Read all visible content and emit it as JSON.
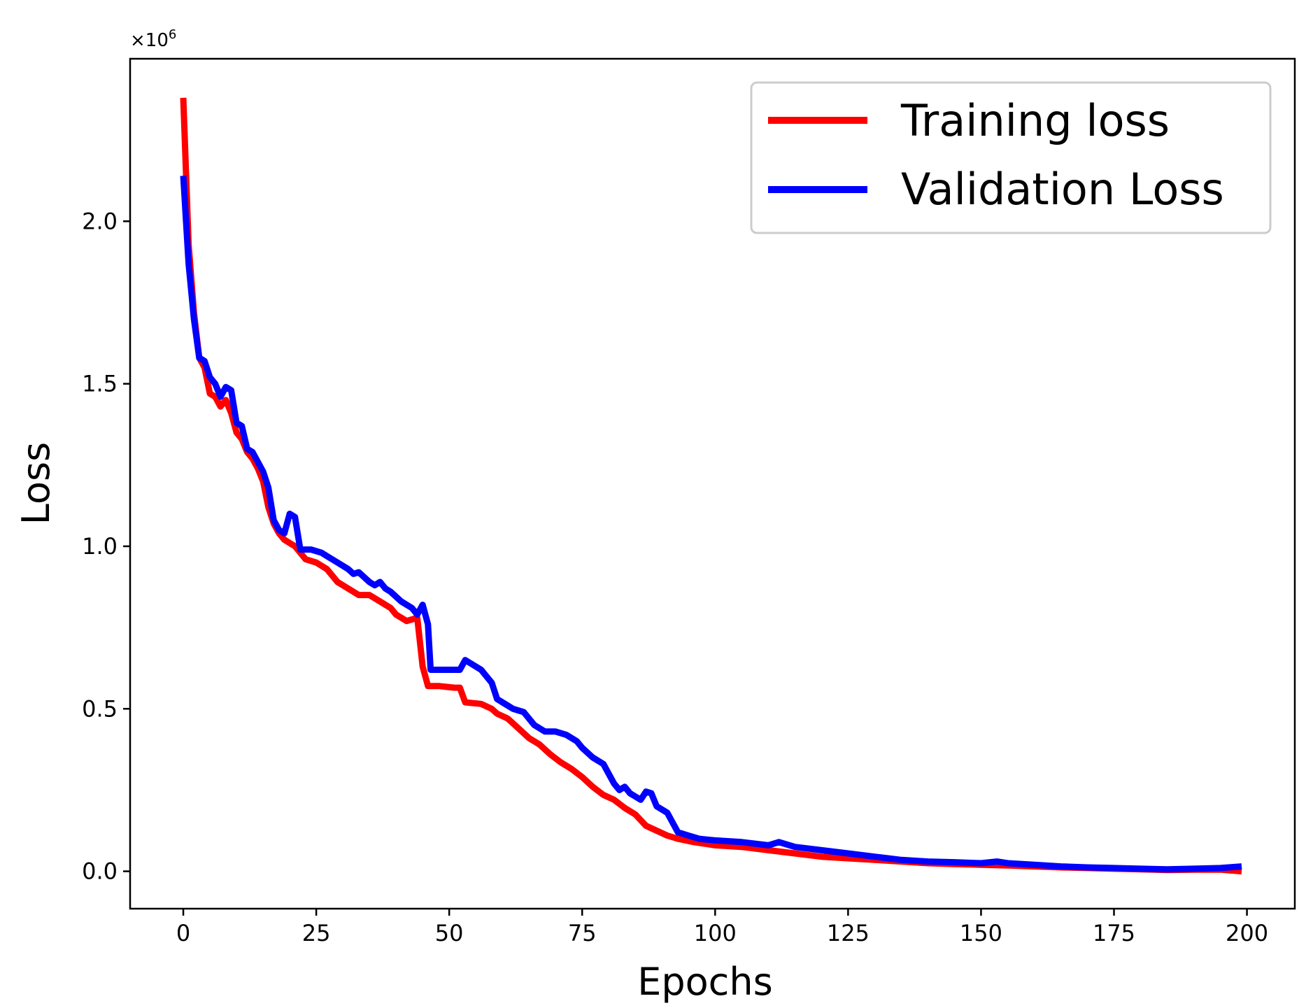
{
  "chart_data": {
    "type": "line",
    "title": "",
    "xlabel": "Epochs",
    "ylabel": "Loss",
    "y_multiplier_base": "×10",
    "y_multiplier_exp": "6",
    "xlim": [
      -10,
      209
    ],
    "ylim": [
      -0.115,
      2.5
    ],
    "xticks": [
      0,
      25,
      50,
      75,
      100,
      125,
      150,
      175,
      200
    ],
    "xtick_labels": [
      "0",
      "25",
      "50",
      "75",
      "100",
      "125",
      "150",
      "175",
      "200"
    ],
    "yticks": [
      0.0,
      0.5,
      1.0,
      1.5,
      2.0
    ],
    "ytick_labels": [
      "0.0",
      "0.5",
      "1.0",
      "1.5",
      "2.0"
    ],
    "grid": false,
    "legend": {
      "position": "top-right"
    },
    "series": [
      {
        "name": "Training loss",
        "color": "#ff0000",
        "points": [
          [
            0,
            2.38
          ],
          [
            1,
            1.93
          ],
          [
            2,
            1.72
          ],
          [
            3,
            1.58
          ],
          [
            4,
            1.55
          ],
          [
            5,
            1.47
          ],
          [
            6,
            1.46
          ],
          [
            7,
            1.43
          ],
          [
            8,
            1.45
          ],
          [
            9,
            1.41
          ],
          [
            10,
            1.35
          ],
          [
            11,
            1.33
          ],
          [
            12,
            1.29
          ],
          [
            13,
            1.27
          ],
          [
            14,
            1.24
          ],
          [
            15,
            1.2
          ],
          [
            16,
            1.12
          ],
          [
            17,
            1.07
          ],
          [
            18,
            1.04
          ],
          [
            19,
            1.02
          ],
          [
            20,
            1.01
          ],
          [
            21,
            1.0
          ],
          [
            22,
            0.98
          ],
          [
            23,
            0.96
          ],
          [
            25,
            0.95
          ],
          [
            27,
            0.93
          ],
          [
            29,
            0.89
          ],
          [
            31,
            0.87
          ],
          [
            33,
            0.85
          ],
          [
            35,
            0.85
          ],
          [
            37,
            0.83
          ],
          [
            39,
            0.81
          ],
          [
            40,
            0.79
          ],
          [
            42,
            0.77
          ],
          [
            44,
            0.78
          ],
          [
            45,
            0.63
          ],
          [
            46,
            0.57
          ],
          [
            48,
            0.57
          ],
          [
            51,
            0.565
          ],
          [
            52,
            0.565
          ],
          [
            53,
            0.52
          ],
          [
            56,
            0.515
          ],
          [
            58,
            0.5
          ],
          [
            59,
            0.485
          ],
          [
            61,
            0.47
          ],
          [
            63,
            0.44
          ],
          [
            65,
            0.41
          ],
          [
            67,
            0.39
          ],
          [
            69,
            0.36
          ],
          [
            71,
            0.335
          ],
          [
            73,
            0.315
          ],
          [
            75,
            0.29
          ],
          [
            77,
            0.26
          ],
          [
            79,
            0.235
          ],
          [
            81,
            0.22
          ],
          [
            83,
            0.195
          ],
          [
            85,
            0.175
          ],
          [
            87,
            0.14
          ],
          [
            89,
            0.125
          ],
          [
            91,
            0.11
          ],
          [
            93,
            0.1
          ],
          [
            96,
            0.09
          ],
          [
            100,
            0.08
          ],
          [
            105,
            0.075
          ],
          [
            110,
            0.065
          ],
          [
            115,
            0.055
          ],
          [
            120,
            0.045
          ],
          [
            125,
            0.04
          ],
          [
            130,
            0.035
          ],
          [
            135,
            0.03
          ],
          [
            140,
            0.025
          ],
          [
            145,
            0.022
          ],
          [
            150,
            0.02
          ],
          [
            155,
            0.018
          ],
          [
            160,
            0.015
          ],
          [
            165,
            0.012
          ],
          [
            170,
            0.01
          ],
          [
            175,
            0.008
          ],
          [
            180,
            0.006
          ],
          [
            185,
            0.004
          ],
          [
            190,
            0.005
          ],
          [
            195,
            0.005
          ],
          [
            199,
            0.0
          ]
        ]
      },
      {
        "name": "Validation Loss",
        "color": "#0000ff",
        "points": [
          [
            0,
            2.14
          ],
          [
            1,
            1.87
          ],
          [
            2,
            1.7
          ],
          [
            3,
            1.58
          ],
          [
            4,
            1.57
          ],
          [
            5,
            1.52
          ],
          [
            6,
            1.5
          ],
          [
            7,
            1.46
          ],
          [
            8,
            1.49
          ],
          [
            9,
            1.48
          ],
          [
            10,
            1.38
          ],
          [
            11,
            1.37
          ],
          [
            12,
            1.3
          ],
          [
            13,
            1.29
          ],
          [
            14,
            1.26
          ],
          [
            15,
            1.23
          ],
          [
            16,
            1.18
          ],
          [
            17,
            1.08
          ],
          [
            18,
            1.05
          ],
          [
            19,
            1.04
          ],
          [
            20,
            1.1
          ],
          [
            21,
            1.09
          ],
          [
            22,
            0.99
          ],
          [
            24,
            0.99
          ],
          [
            26,
            0.98
          ],
          [
            27,
            0.97
          ],
          [
            29,
            0.95
          ],
          [
            31,
            0.93
          ],
          [
            32,
            0.915
          ],
          [
            33,
            0.92
          ],
          [
            35,
            0.89
          ],
          [
            36,
            0.88
          ],
          [
            37,
            0.89
          ],
          [
            38,
            0.87
          ],
          [
            39,
            0.86
          ],
          [
            41,
            0.83
          ],
          [
            43,
            0.81
          ],
          [
            44,
            0.79
          ],
          [
            45,
            0.82
          ],
          [
            46,
            0.76
          ],
          [
            46.5,
            0.62
          ],
          [
            48,
            0.62
          ],
          [
            52,
            0.62
          ],
          [
            53,
            0.65
          ],
          [
            54,
            0.64
          ],
          [
            56,
            0.62
          ],
          [
            57,
            0.6
          ],
          [
            58,
            0.58
          ],
          [
            59,
            0.53
          ],
          [
            60,
            0.52
          ],
          [
            61,
            0.51
          ],
          [
            62,
            0.5
          ],
          [
            64,
            0.49
          ],
          [
            65,
            0.47
          ],
          [
            66,
            0.45
          ],
          [
            68,
            0.43
          ],
          [
            70,
            0.43
          ],
          [
            72,
            0.42
          ],
          [
            74,
            0.4
          ],
          [
            75,
            0.38
          ],
          [
            77,
            0.35
          ],
          [
            79,
            0.33
          ],
          [
            80,
            0.3
          ],
          [
            81,
            0.27
          ],
          [
            82,
            0.25
          ],
          [
            83,
            0.26
          ],
          [
            84,
            0.24
          ],
          [
            85,
            0.23
          ],
          [
            86,
            0.22
          ],
          [
            87,
            0.245
          ],
          [
            88,
            0.24
          ],
          [
            89,
            0.2
          ],
          [
            91,
            0.18
          ],
          [
            92,
            0.15
          ],
          [
            93,
            0.12
          ],
          [
            95,
            0.11
          ],
          [
            97,
            0.1
          ],
          [
            100,
            0.095
          ],
          [
            105,
            0.09
          ],
          [
            110,
            0.08
          ],
          [
            112,
            0.09
          ],
          [
            115,
            0.075
          ],
          [
            120,
            0.065
          ],
          [
            125,
            0.055
          ],
          [
            130,
            0.045
          ],
          [
            135,
            0.035
          ],
          [
            140,
            0.03
          ],
          [
            145,
            0.028
          ],
          [
            150,
            0.025
          ],
          [
            153,
            0.03
          ],
          [
            155,
            0.025
          ],
          [
            160,
            0.02
          ],
          [
            165,
            0.015
          ],
          [
            170,
            0.012
          ],
          [
            175,
            0.01
          ],
          [
            180,
            0.008
          ],
          [
            185,
            0.006
          ],
          [
            190,
            0.008
          ],
          [
            195,
            0.01
          ],
          [
            199,
            0.015
          ]
        ]
      }
    ]
  }
}
